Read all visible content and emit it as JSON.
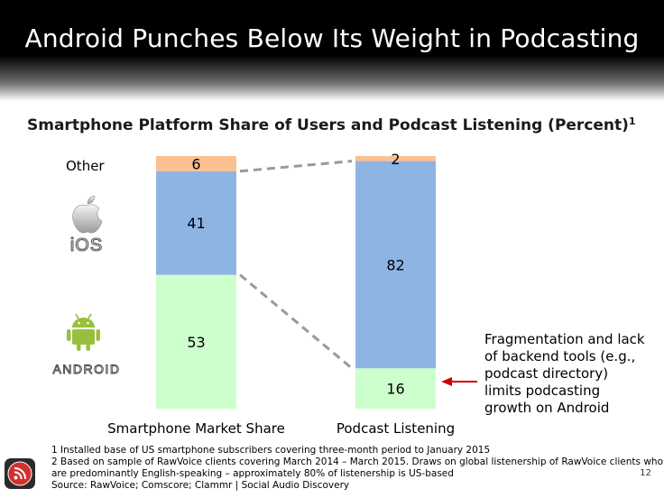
{
  "header": {
    "title": "Android Punches Below Its Weight in Podcasting"
  },
  "chart_data": {
    "type": "bar",
    "stacked": true,
    "title": "Smartphone Platform Share of Users and Podcast Listening (Percent)",
    "title_footnote_marker": "1",
    "categories": [
      "Smartphone Market Share",
      "Podcast Listening"
    ],
    "series": [
      {
        "name": "Android",
        "values": [
          53,
          16
        ],
        "color": "#ccffcc"
      },
      {
        "name": "iOS",
        "values": [
          41,
          82
        ],
        "color": "#8eb4e3"
      },
      {
        "name": "Other",
        "values": [
          6,
          2
        ],
        "color": "#fac090"
      }
    ],
    "ylim": [
      0,
      100
    ],
    "grid": false,
    "legend": "left",
    "connector_color": "#999999"
  },
  "legend": {
    "other_label": "Other",
    "ios_icon": "apple-ios-logo-icon",
    "android_icon": "android-robot-logo-icon"
  },
  "annotation": {
    "text": "Fragmentation and lack of backend tools (e.g., podcast directory) limits podcasting growth on Android",
    "arrow_color": "#cc0000"
  },
  "footnotes": [
    "1 Installed base of US smartphone subscribers covering three-month period to January 2015",
    "2 Based on sample of RawVoice clients covering March 2014 – March 2015. Draws on global listenership of RawVoice clients who",
    "are predominantly English-speaking – approximately 80% of listenership is US-based",
    "Source: RawVoice; Comscore; Clammr | Social Audio Discovery"
  ],
  "page_number": "12",
  "logo_icon": "rss-feed-logo-icon"
}
